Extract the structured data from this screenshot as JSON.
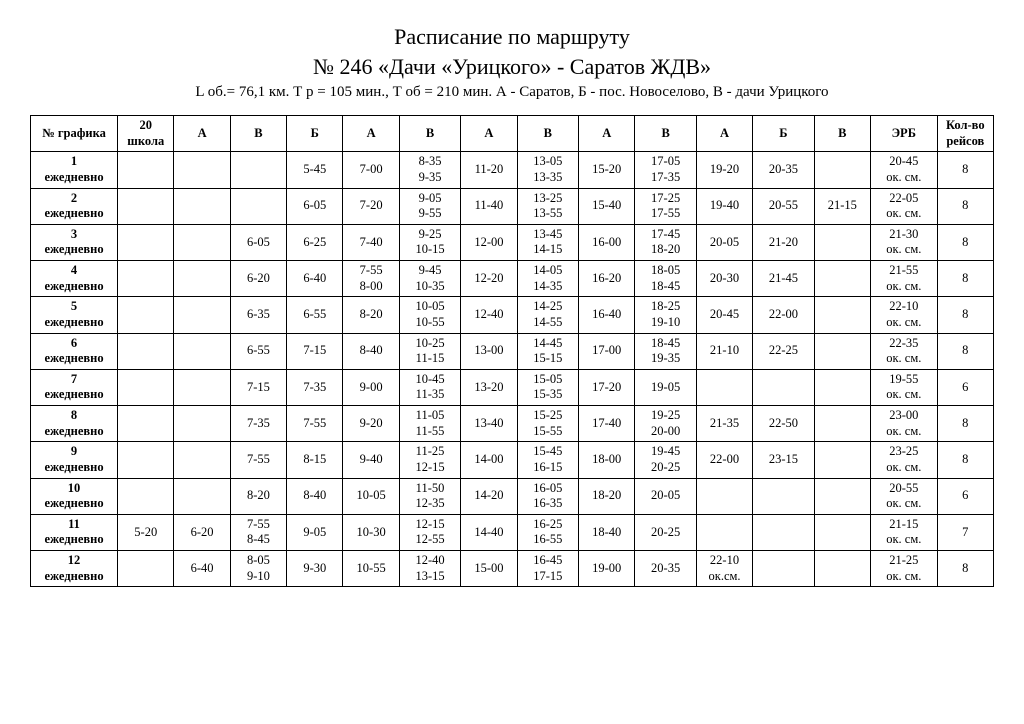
{
  "header": {
    "line1": "Расписание по маршруту",
    "line2": "№ 246 «Дачи «Урицкого» - Саратов ЖДВ»",
    "subtitle": "L об.= 76,1 км. Т р = 105 мин., Т об = 210 мин. А - Саратов, Б - пос. Новоселово, В - дачи Урицкого"
  },
  "table": {
    "columns": [
      "№ графика",
      "20\nшкола",
      "А",
      "В",
      "Б",
      "А",
      "В",
      "А",
      "В",
      "А",
      "В",
      "А",
      "Б",
      "В",
      "ЭРБ",
      "Кол-во\nрейсов"
    ],
    "col_widths_pct": [
      8.5,
      5.5,
      5.5,
      5.5,
      5.5,
      5.5,
      6,
      5.5,
      6,
      5.5,
      6,
      5.5,
      6,
      5.5,
      6.5,
      5.5
    ],
    "rows": [
      {
        "label": "1\nежедневно",
        "cells": [
          "",
          "",
          "",
          "5-45",
          "7-00",
          "8-35\n9-35",
          "11-20",
          "13-05\n13-35",
          "15-20",
          "17-05\n17-35",
          "19-20",
          "20-35",
          "",
          "20-45\nок. см.",
          "8"
        ]
      },
      {
        "label": "2\nежедневно",
        "cells": [
          "",
          "",
          "",
          "6-05",
          "7-20",
          "9-05\n9-55",
          "11-40",
          "13-25\n13-55",
          "15-40",
          "17-25\n17-55",
          "19-40",
          "20-55",
          "21-15",
          "22-05\nок. см.",
          "8"
        ]
      },
      {
        "label": "3\nежедневно",
        "cells": [
          "",
          "",
          "6-05",
          "6-25",
          "7-40",
          "9-25\n10-15",
          "12-00",
          "13-45\n14-15",
          "16-00",
          "17-45\n18-20",
          "20-05",
          "21-20",
          "",
          "21-30\nок. см.",
          "8"
        ]
      },
      {
        "label": "4\nежедневно",
        "cells": [
          "",
          "",
          "6-20",
          "6-40",
          "7-55\n8-00",
          "9-45\n10-35",
          "12-20",
          "14-05\n14-35",
          "16-20",
          "18-05\n18-45",
          "20-30",
          "21-45",
          "",
          "21-55\nок. см.",
          "8"
        ]
      },
      {
        "label": "5\nежедневно",
        "cells": [
          "",
          "",
          "6-35",
          "6-55",
          "8-20",
          "10-05\n10-55",
          "12-40",
          "14-25\n14-55",
          "16-40",
          "18-25\n19-10",
          "20-45",
          "22-00",
          "",
          "22-10\nок. см.",
          "8"
        ]
      },
      {
        "label": "6\nежедневно",
        "cells": [
          "",
          "",
          "6-55",
          "7-15",
          "8-40",
          "10-25\n11-15",
          "13-00",
          "14-45\n15-15",
          "17-00",
          "18-45\n19-35",
          "21-10",
          "22-25",
          "",
          "22-35\nок. см.",
          "8"
        ]
      },
      {
        "label": "7\nежедневно",
        "cells": [
          "",
          "",
          "7-15",
          "7-35",
          "9-00",
          "10-45\n11-35",
          "13-20",
          "15-05\n15-35",
          "17-20",
          "19-05",
          "",
          "",
          "",
          "19-55\nок. см.",
          "6"
        ]
      },
      {
        "label": "8\nежедневно",
        "cells": [
          "",
          "",
          "7-35",
          "7-55",
          "9-20",
          "11-05\n11-55",
          "13-40",
          "15-25\n15-55",
          "17-40",
          "19-25\n20-00",
          "21-35",
          "22-50",
          "",
          "23-00\nок. см.",
          "8"
        ]
      },
      {
        "label": "9\nежедневно",
        "cells": [
          "",
          "",
          "7-55",
          "8-15",
          "9-40",
          "11-25\n12-15",
          "14-00",
          "15-45\n16-15",
          "18-00",
          "19-45\n20-25",
          "22-00",
          "23-15",
          "",
          "23-25\nок. см.",
          "8"
        ]
      },
      {
        "label": "10\nежедневно",
        "cells": [
          "",
          "",
          "8-20",
          "8-40",
          "10-05",
          "11-50\n12-35",
          "14-20",
          "16-05\n16-35",
          "18-20",
          "20-05",
          "",
          "",
          "",
          "20-55\nок. см.",
          "6"
        ]
      },
      {
        "label": "11\nежедневно",
        "cells": [
          "5-20",
          "6-20",
          "7-55\n8-45",
          "9-05",
          "10-30",
          "12-15\n12-55",
          "14-40",
          "16-25\n16-55",
          "18-40",
          "20-25",
          "",
          "",
          "",
          "21-15\nок. см.",
          "7"
        ]
      },
      {
        "label": "12\nежедневно",
        "cells": [
          "",
          "6-40",
          "8-05\n9-10",
          "9-30",
          "10-55",
          "12-40\n13-15",
          "15-00",
          "16-45\n17-15",
          "19-00",
          "20-35",
          "22-10\nок.см.",
          "",
          "",
          "21-25\nок. см.",
          "8"
        ]
      }
    ]
  },
  "style": {
    "background_color": "#ffffff",
    "border_color": "#000000",
    "text_color": "#000000",
    "title_fontsize": 22,
    "subtitle_fontsize": 15,
    "table_fontsize": 12.5
  }
}
